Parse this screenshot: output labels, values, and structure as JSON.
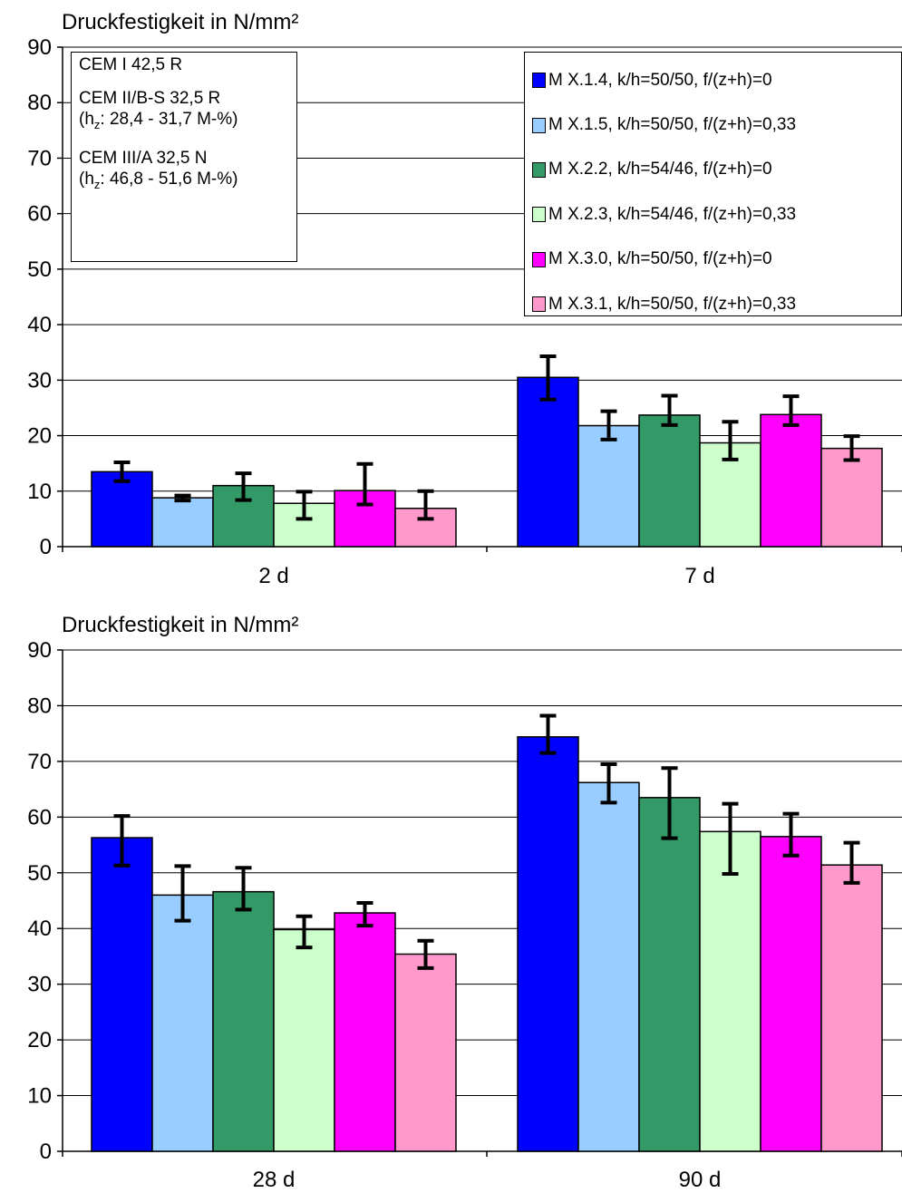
{
  "colors": {
    "series": [
      "#0000FF",
      "#99CCFF",
      "#339966",
      "#CCFFCC",
      "#FF00FF",
      "#FF99CC"
    ],
    "grid": "#000000",
    "error_bar": "#000000"
  },
  "legend": [
    "M X.1.4, k/h=50/50, f/(z+h)=0",
    "M X.1.5, k/h=50/50, f/(z+h)=0,33",
    "M X.2.2, k/h=54/46, f/(z+h)=0",
    "M X.2.3, k/h=54/46, f/(z+h)=0,33",
    "M X.3.0, k/h=50/50, f/(z+h)=0",
    "M X.3.1, k/h=50/50, f/(z+h)=0,33"
  ],
  "notes": {
    "line1": "CEM I 42,5 R",
    "line2": "CEM II/B-S 32,5 R",
    "line3_prefix": "(h",
    "line3_sub": "z",
    "line3_rest": ": 28,4 - 31,7 M-%)",
    "line4": "CEM III/A 32,5 N",
    "line5_prefix": "(h",
    "line5_sub": "z",
    "line5_rest": ": 46,8 - 51,6 M-%)"
  },
  "chart_data": [
    {
      "type": "bar",
      "title": "Druckfestigkeit in N/mm²",
      "categories": [
        "2 d",
        "7 d"
      ],
      "ylim": [
        0,
        90
      ],
      "yticks": [
        "0",
        "10",
        "20",
        "30",
        "40",
        "50",
        "60",
        "70",
        "80",
        "90"
      ],
      "grid": true,
      "legend_position": "top-right",
      "series": [
        {
          "name": "M X.1.4, k/h=50/50, f/(z+h)=0",
          "values": [
            13.5,
            30.5
          ],
          "err_low": [
            11.8,
            26.5
          ],
          "err_high": [
            15.2,
            34.3
          ]
        },
        {
          "name": "M X.1.5, k/h=50/50, f/(z+h)=0,33",
          "values": [
            8.8,
            21.8
          ],
          "err_low": [
            8.3,
            19.3
          ],
          "err_high": [
            9.2,
            24.4
          ]
        },
        {
          "name": "M X.2.2, k/h=54/46, f/(z+h)=0",
          "values": [
            11.0,
            23.7
          ],
          "err_low": [
            8.4,
            21.9
          ],
          "err_high": [
            13.2,
            27.2
          ]
        },
        {
          "name": "M X.2.3, k/h=54/46, f/(z+h)=0,33",
          "values": [
            7.8,
            18.7
          ],
          "err_low": [
            5.0,
            15.7
          ],
          "err_high": [
            9.9,
            22.5
          ]
        },
        {
          "name": "M X.3.0, k/h=50/50, f/(z+h)=0",
          "values": [
            10.1,
            23.8
          ],
          "err_low": [
            7.6,
            21.9
          ],
          "err_high": [
            14.9,
            27.1
          ]
        },
        {
          "name": "M X.3.1, k/h=50/50, f/(z+h)=0,33",
          "values": [
            6.9,
            17.7
          ],
          "err_low": [
            5.0,
            15.6
          ],
          "err_high": [
            10.0,
            19.9
          ]
        }
      ]
    },
    {
      "type": "bar",
      "title": "Druckfestigkeit in N/mm²",
      "categories": [
        "28 d",
        "90 d"
      ],
      "ylim": [
        0,
        90
      ],
      "yticks": [
        "0",
        "10",
        "20",
        "30",
        "40",
        "50",
        "60",
        "70",
        "80",
        "90"
      ],
      "grid": true,
      "series": [
        {
          "name": "M X.1.4, k/h=50/50, f/(z+h)=0",
          "values": [
            56.3,
            74.4
          ],
          "err_low": [
            51.3,
            71.5
          ],
          "err_high": [
            60.2,
            78.2
          ]
        },
        {
          "name": "M X.1.5, k/h=50/50, f/(z+h)=0,33",
          "values": [
            46.0,
            66.2
          ],
          "err_low": [
            41.4,
            62.6
          ],
          "err_high": [
            51.2,
            69.5
          ]
        },
        {
          "name": "M X.2.2, k/h=54/46, f/(z+h)=0",
          "values": [
            46.6,
            63.5
          ],
          "err_low": [
            43.4,
            56.2
          ],
          "err_high": [
            50.9,
            68.8
          ]
        },
        {
          "name": "M X.2.3, k/h=54/46, f/(z+h)=0,33",
          "values": [
            39.8,
            57.4
          ],
          "err_low": [
            36.6,
            49.8
          ],
          "err_high": [
            42.2,
            62.4
          ]
        },
        {
          "name": "M X.3.0, k/h=50/50, f/(z+h)=0",
          "values": [
            42.8,
            56.5
          ],
          "err_low": [
            40.5,
            53.1
          ],
          "err_high": [
            44.6,
            60.6
          ]
        },
        {
          "name": "M X.3.1, k/h=50/50, f/(z+h)=0,33",
          "values": [
            35.4,
            51.4
          ],
          "err_low": [
            32.9,
            48.2
          ],
          "err_high": [
            37.8,
            55.4
          ]
        }
      ]
    }
  ]
}
